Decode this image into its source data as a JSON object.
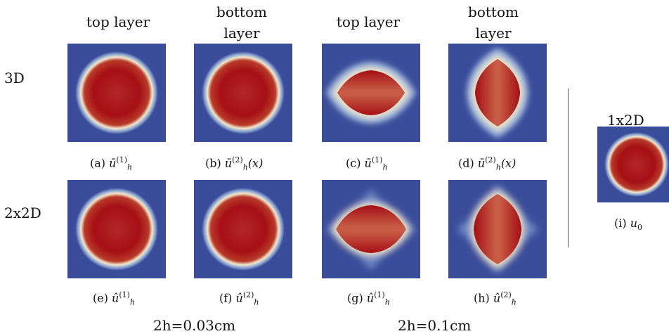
{
  "column_headers": {
    "c1": "top layer",
    "c2_line1": "bottom",
    "c2_line2": "layer",
    "c3": "top layer",
    "c4_line1": "bottom",
    "c4_line2": "layer"
  },
  "row_labels": {
    "r1": "3D",
    "r2": "2x2D"
  },
  "right_title": "1x2D",
  "captions": {
    "a": {
      "prefix": "(a) ",
      "sym": "ū",
      "sup": "(1)",
      "sub": "h",
      "suffix": ""
    },
    "b": {
      "prefix": "(b) ",
      "sym": "ū",
      "sup": "(2)",
      "sub": "h",
      "suffix": "(x)"
    },
    "c": {
      "prefix": "(c) ",
      "sym": "ū",
      "sup": "(1)",
      "sub": "h",
      "suffix": ""
    },
    "d": {
      "prefix": "(d) ",
      "sym": "ū",
      "sup": "(2)",
      "sub": "h",
      "suffix": "(x)"
    },
    "e": {
      "prefix": "(e) ",
      "sym": "û",
      "sup": "(1)",
      "sub": "h",
      "suffix": ""
    },
    "f": {
      "prefix": "(f) ",
      "sym": "û",
      "sup": "(2)",
      "sub": "h",
      "suffix": ""
    },
    "g": {
      "prefix": "(g) ",
      "sym": "û",
      "sup": "(1)",
      "sub": "h",
      "suffix": ""
    },
    "h": {
      "prefix": "(h) ",
      "sym": "û",
      "sup": "(2)",
      "sub": "h",
      "suffix": ""
    },
    "i": {
      "prefix": "(i) ",
      "sym": "u",
      "sup": "",
      "sub": "0",
      "suffix": ""
    }
  },
  "group_labels": {
    "g1": "2h=0.03cm",
    "g2": "2h=0.1cm"
  },
  "colors": {
    "background": "#3b4c9a",
    "core": "#a50f15",
    "halo": "#f2e6c8"
  }
}
